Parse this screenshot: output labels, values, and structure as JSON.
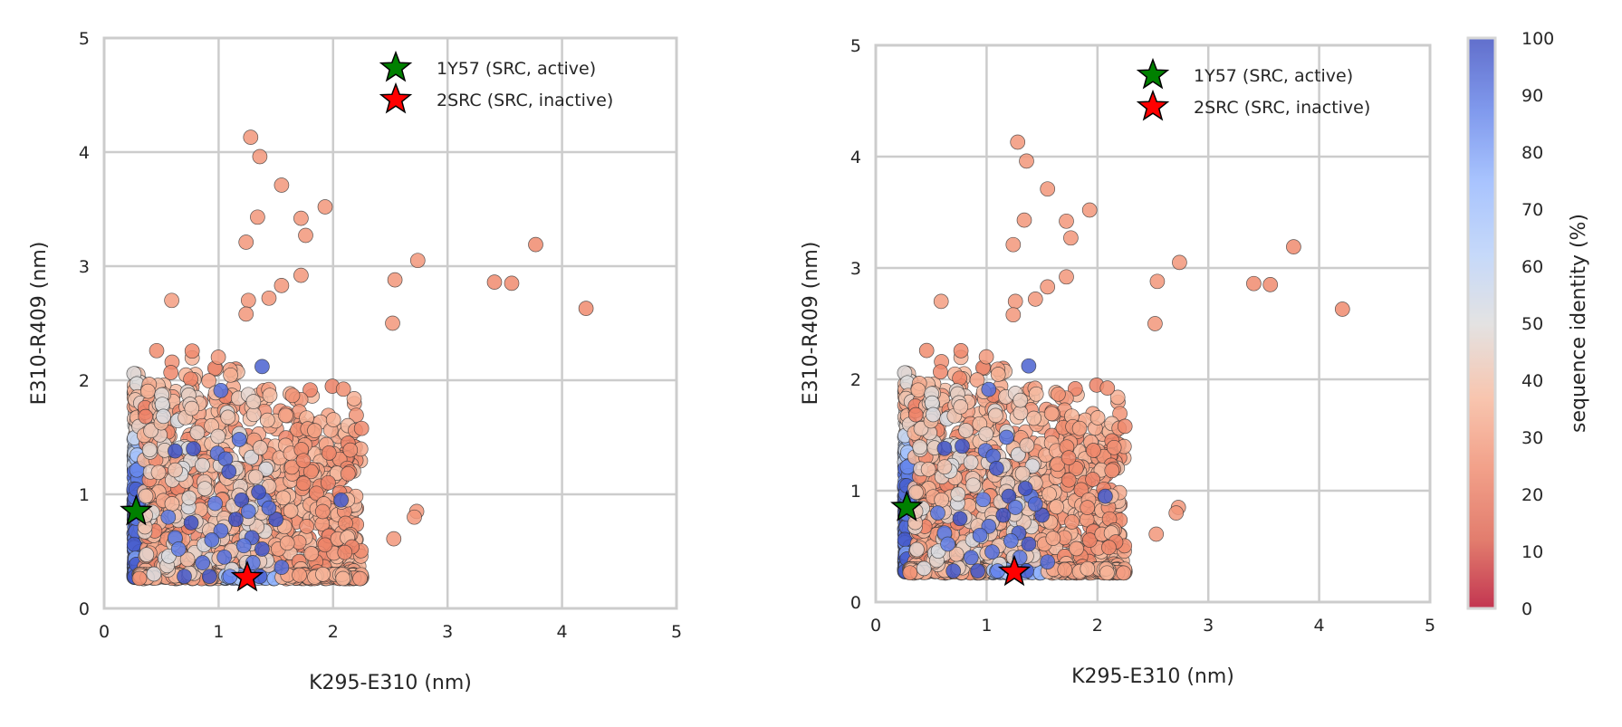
{
  "chart_data": [
    {
      "type": "scatter",
      "xlabel": "K295-E310 (nm)",
      "ylabel": "E310-R409 (nm)",
      "xlim": [
        0,
        5
      ],
      "ylim": [
        0,
        5
      ],
      "xticks": [
        "0",
        "1",
        "2",
        "3",
        "4",
        "5"
      ],
      "yticks": [
        "0",
        "1",
        "2",
        "3",
        "4",
        "5"
      ],
      "grid": true,
      "legend_position": "top-right",
      "color_by": "sequence identity (%)",
      "reference_points": [
        {
          "label": "1Y57 (SRC, active)",
          "x": 0.28,
          "y": 0.85,
          "color": "#008000",
          "marker": "star"
        },
        {
          "label": "2SRC (SRC, inactive)",
          "x": 1.25,
          "y": 0.27,
          "color": "#ff0000",
          "marker": "star"
        }
      ],
      "outliers": [
        {
          "x": 1.28,
          "y": 4.13,
          "identity": 28
        },
        {
          "x": 1.36,
          "y": 3.96,
          "identity": 28
        },
        {
          "x": 1.55,
          "y": 3.71,
          "identity": 28
        },
        {
          "x": 1.93,
          "y": 3.52,
          "identity": 28
        },
        {
          "x": 1.34,
          "y": 3.43,
          "identity": 28
        },
        {
          "x": 1.72,
          "y": 3.42,
          "identity": 28
        },
        {
          "x": 1.76,
          "y": 3.27,
          "identity": 28
        },
        {
          "x": 1.24,
          "y": 3.21,
          "identity": 28
        },
        {
          "x": 3.77,
          "y": 3.19,
          "identity": 25
        },
        {
          "x": 2.74,
          "y": 3.05,
          "identity": 28
        },
        {
          "x": 1.72,
          "y": 2.92,
          "identity": 28
        },
        {
          "x": 2.54,
          "y": 2.88,
          "identity": 28
        },
        {
          "x": 3.41,
          "y": 2.86,
          "identity": 25
        },
        {
          "x": 3.56,
          "y": 2.85,
          "identity": 25
        },
        {
          "x": 1.55,
          "y": 2.83,
          "identity": 28
        },
        {
          "x": 1.44,
          "y": 2.72,
          "identity": 28
        },
        {
          "x": 1.26,
          "y": 2.7,
          "identity": 28
        },
        {
          "x": 0.59,
          "y": 2.7,
          "identity": 30
        },
        {
          "x": 4.21,
          "y": 2.63,
          "identity": 25
        },
        {
          "x": 1.24,
          "y": 2.58,
          "identity": 28
        },
        {
          "x": 2.52,
          "y": 2.5,
          "identity": 28
        },
        {
          "x": 1.38,
          "y": 2.12,
          "identity": 95
        },
        {
          "x": 1.02,
          "y": 1.91,
          "identity": 92
        },
        {
          "x": 2.73,
          "y": 0.85,
          "identity": 28
        },
        {
          "x": 2.71,
          "y": 0.8,
          "identity": 28
        },
        {
          "x": 2.53,
          "y": 0.61,
          "identity": 28
        }
      ]
    },
    {
      "type": "scatter",
      "xlabel": "K295-E310 (nm)",
      "ylabel": "E310-R409 (nm)",
      "xlim": [
        0,
        5
      ],
      "ylim": [
        0,
        5
      ],
      "xticks": [
        "0",
        "1",
        "2",
        "3",
        "4",
        "5"
      ],
      "yticks": [
        "0",
        "1",
        "2",
        "3",
        "4",
        "5"
      ],
      "grid": true,
      "legend_position": "top-right",
      "color_by": "sequence identity (%)",
      "colorbar": {
        "label": "sequence identity (%)",
        "range": [
          0,
          100
        ],
        "ticks": [
          "0",
          "10",
          "20",
          "30",
          "40",
          "50",
          "60",
          "70",
          "80",
          "90",
          "100"
        ],
        "colormap": "coolwarm_r"
      },
      "reference_points": [
        {
          "label": "1Y57 (SRC, active)",
          "x": 0.28,
          "y": 0.85,
          "color": "#008000",
          "marker": "star"
        },
        {
          "label": "2SRC (SRC, inactive)",
          "x": 1.25,
          "y": 0.27,
          "color": "#ff0000",
          "marker": "star"
        }
      ],
      "same_data_as": 0
    }
  ]
}
